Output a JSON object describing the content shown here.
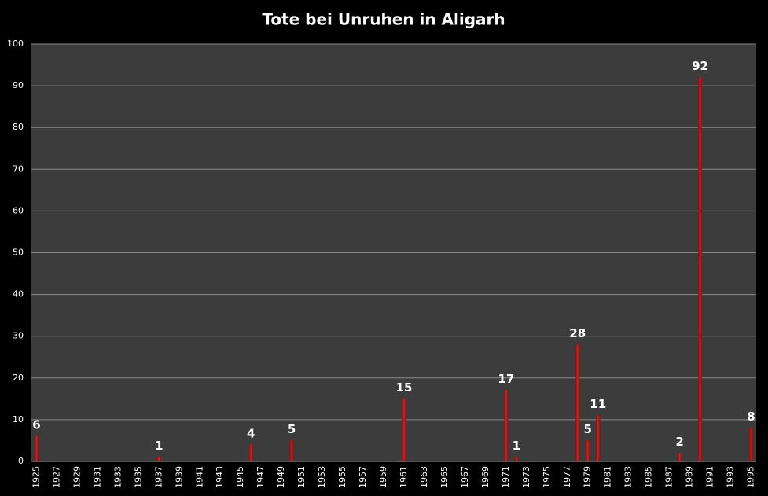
{
  "chart_data": {
    "type": "bar",
    "title": "Tote bei Unruhen in Aligarh",
    "categories": [
      "1925",
      null,
      "1927",
      null,
      "1929",
      null,
      "1931",
      null,
      "1933",
      null,
      "1935",
      null,
      "1937",
      null,
      "1939",
      null,
      "1941",
      null,
      "1943",
      null,
      "1945",
      null,
      "1947",
      null,
      "1949",
      null,
      "1951",
      null,
      "1953",
      null,
      "1955",
      null,
      "1957",
      null,
      "1959",
      null,
      "1961",
      null,
      "1963",
      null,
      "1965",
      null,
      "1967",
      null,
      "1969",
      null,
      "1971",
      null,
      "1973",
      null,
      "1975",
      null,
      "1977",
      null,
      "1979",
      null,
      "1981",
      null,
      "1983",
      null,
      "1985",
      null,
      "1987",
      null,
      "1989",
      null,
      "1991",
      null,
      "1993",
      null,
      "1995"
    ],
    "values": [
      6,
      null,
      null,
      null,
      null,
      null,
      null,
      null,
      null,
      null,
      null,
      null,
      1,
      null,
      null,
      null,
      null,
      null,
      null,
      null,
      null,
      4,
      null,
      null,
      null,
      5,
      null,
      null,
      null,
      null,
      null,
      null,
      null,
      null,
      null,
      null,
      15,
      null,
      null,
      null,
      null,
      null,
      null,
      null,
      null,
      null,
      17,
      1,
      null,
      null,
      null,
      null,
      null,
      28,
      5,
      11,
      null,
      null,
      null,
      null,
      null,
      null,
      null,
      2,
      null,
      92,
      null,
      null,
      null,
      null,
      8
    ],
    "color": "#d42020",
    "ylim": [
      0,
      100
    ],
    "yticks": [
      0,
      10,
      20,
      30,
      40,
      50,
      60,
      70,
      80,
      90,
      100
    ],
    "grid": true
  }
}
